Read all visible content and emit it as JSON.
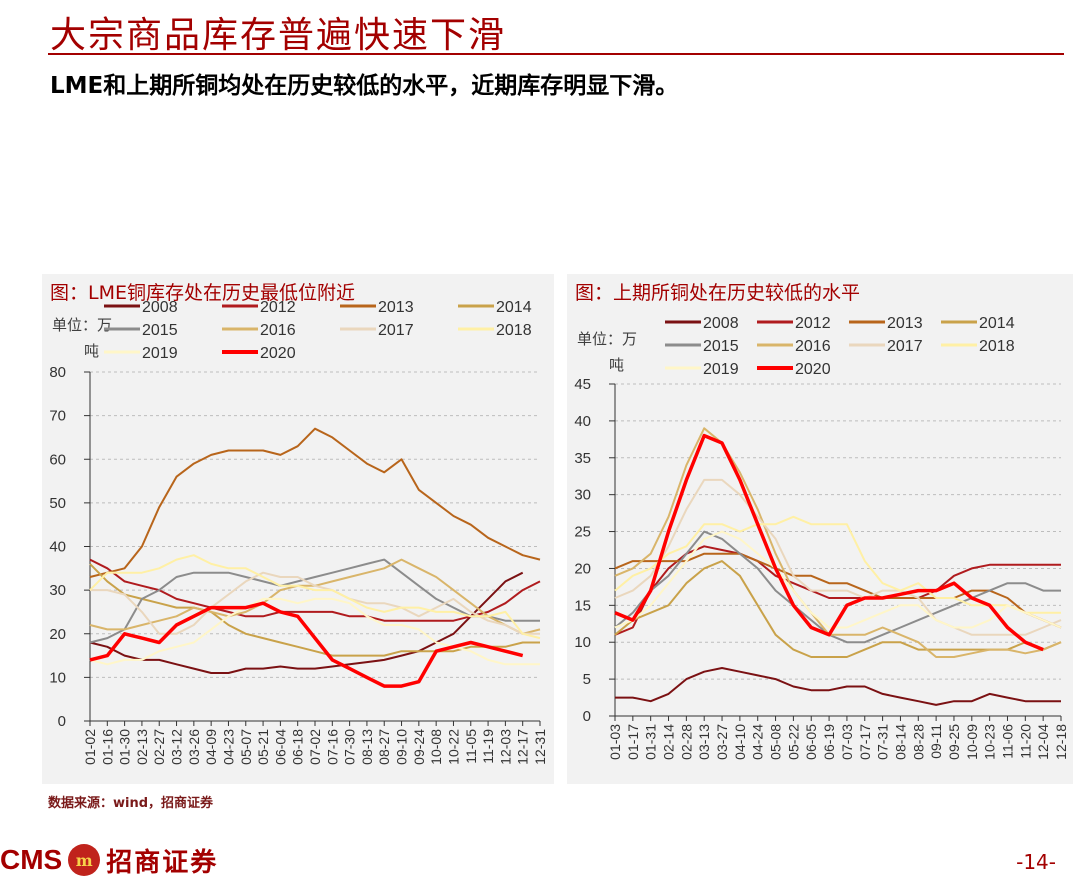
{
  "header": {
    "title": "大宗商品库存普遍快速下滑",
    "subtitle": "LME和上期所铜均处在历史较低的水平，近期库存明显下滑。"
  },
  "footer": {
    "source": "数据来源：wind，招商证券",
    "logo_latin": "CMS",
    "logo_badge": "m",
    "logo_cn": "招商证券",
    "page_number": "-14-"
  },
  "colors": {
    "2008": "#7b1113",
    "2012": "#b01b1e",
    "2013": "#b8651b",
    "2014": "#c9a24a",
    "2015": "#8c8c8c",
    "2016": "#d9b56a",
    "2017": "#ead7bd",
    "2018": "#fff0a5",
    "2019": "#fff6c8",
    "2020": "#ff0000"
  },
  "chart_data": [
    {
      "type": "line",
      "title": "图：LME铜库存处在历史最低位附近",
      "ylabel_1": "单位：万",
      "ylabel_2": "吨",
      "ylim": [
        0,
        80
      ],
      "yticks": [
        0,
        10,
        20,
        30,
        40,
        50,
        60,
        70,
        80
      ],
      "categories": [
        "01-02",
        "01-16",
        "01-30",
        "02-13",
        "02-27",
        "03-12",
        "03-26",
        "04-09",
        "04-23",
        "05-07",
        "05-21",
        "06-04",
        "06-18",
        "07-02",
        "07-16",
        "07-30",
        "08-13",
        "08-27",
        "09-10",
        "09-24",
        "10-08",
        "10-22",
        "11-05",
        "11-19",
        "12-03",
        "12-17",
        "12-31"
      ],
      "legend": [
        "2008",
        "2012",
        "2013",
        "2014",
        "2015",
        "2016",
        "2017",
        "2018",
        "2019",
        "2020"
      ],
      "series": [
        {
          "name": "2008",
          "values": [
            18,
            17,
            15,
            14,
            14,
            13,
            12,
            11,
            11,
            12,
            12,
            12.5,
            12,
            12,
            12.5,
            13,
            13.5,
            14,
            15,
            16,
            18,
            20,
            24,
            28,
            32,
            34,
            null
          ]
        },
        {
          "name": "2012",
          "values": [
            37,
            35,
            32,
            31,
            30,
            28,
            27,
            26,
            25,
            24,
            24,
            25,
            25,
            25,
            25,
            24,
            24,
            23,
            23,
            23,
            23,
            23,
            24,
            25,
            27,
            30,
            32
          ]
        },
        {
          "name": "2013",
          "values": [
            33,
            34,
            35,
            40,
            49,
            56,
            59,
            61,
            62,
            62,
            62,
            61,
            63,
            67,
            65,
            62,
            59,
            57,
            60,
            53,
            50,
            47,
            45,
            42,
            40,
            38,
            37
          ]
        },
        {
          "name": "2014",
          "values": [
            36,
            32,
            29,
            28,
            27,
            26,
            26,
            25,
            22,
            20,
            19,
            18,
            17,
            16,
            15,
            15,
            15,
            15,
            16,
            16,
            16,
            16,
            17,
            17,
            17,
            18,
            18
          ]
        },
        {
          "name": "2015",
          "values": [
            18,
            19,
            21,
            28,
            30,
            33,
            34,
            34,
            34,
            33,
            32,
            31,
            32,
            33,
            34,
            35,
            36,
            37,
            34,
            31,
            28,
            26,
            24,
            24,
            23,
            23,
            23
          ]
        },
        {
          "name": "2016",
          "values": [
            22,
            21,
            21,
            22,
            23,
            24,
            26,
            25,
            24,
            25,
            27,
            30,
            31,
            31,
            32,
            33,
            34,
            35,
            37,
            35,
            33,
            30,
            27,
            24,
            22,
            20,
            21
          ]
        },
        {
          "name": "2017",
          "values": [
            30,
            30,
            29,
            25,
            20,
            20,
            22,
            26,
            29,
            32,
            34,
            33,
            33,
            31,
            30,
            28,
            27,
            27,
            26,
            24,
            26,
            28,
            25,
            23,
            22,
            20,
            20
          ]
        },
        {
          "name": "2018",
          "values": [
            30,
            34,
            34,
            34,
            35,
            37,
            38,
            36,
            35,
            35,
            33,
            31,
            31,
            30,
            30,
            28,
            26,
            25,
            26,
            26,
            25,
            25,
            24,
            24,
            25,
            20,
            19
          ]
        },
        {
          "name": "2019",
          "values": [
            14,
            13,
            14,
            14,
            16,
            17,
            18,
            21,
            24,
            26,
            28,
            28,
            27,
            28,
            28,
            27,
            24,
            22,
            22,
            21,
            18,
            17,
            16,
            14,
            13,
            13,
            13
          ]
        },
        {
          "name": "2020",
          "values": [
            14,
            15,
            20,
            19,
            18,
            22,
            24,
            26,
            26,
            26,
            27,
            25,
            24,
            19,
            14,
            12,
            10,
            8,
            8,
            9,
            16,
            17,
            18,
            17,
            16,
            15,
            null
          ]
        }
      ]
    },
    {
      "type": "line",
      "title": "图：上期所铜处在历史较低的水平",
      "ylabel_1": "单位：万",
      "ylabel_2": "吨",
      "ylim": [
        0,
        45
      ],
      "yticks": [
        0,
        5,
        10,
        15,
        20,
        25,
        30,
        35,
        40,
        45
      ],
      "categories": [
        "01-03",
        "01-17",
        "01-31",
        "02-14",
        "02-28",
        "03-13",
        "03-27",
        "04-10",
        "04-24",
        "05-08",
        "05-22",
        "06-05",
        "06-19",
        "07-03",
        "07-17",
        "07-31",
        "08-14",
        "08-28",
        "09-11",
        "09-25",
        "10-09",
        "10-23",
        "11-06",
        "11-20",
        "12-04",
        "12-18"
      ],
      "legend": [
        "2008",
        "2012",
        "2013",
        "2014",
        "2015",
        "2016",
        "2017",
        "2018",
        "2019",
        "2020"
      ],
      "series": [
        {
          "name": "2008",
          "values": [
            2.5,
            2.5,
            2,
            3,
            5,
            6,
            6.5,
            6,
            5.5,
            5,
            4,
            3.5,
            3.5,
            4,
            4,
            3,
            2.5,
            2,
            1.5,
            2,
            2,
            3,
            2.5,
            2,
            2,
            2
          ]
        },
        {
          "name": "2012",
          "values": [
            11,
            12,
            17,
            20,
            22,
            23,
            22.5,
            22,
            21,
            19,
            18,
            17,
            16,
            16,
            16,
            16,
            16,
            16,
            17,
            19,
            20,
            20.5,
            20.5,
            20.5,
            20.5,
            20.5
          ]
        },
        {
          "name": "2013",
          "values": [
            20,
            21,
            21,
            21,
            21,
            22,
            22,
            22,
            21,
            20,
            19,
            19,
            18,
            18,
            17,
            16,
            16,
            16,
            16,
            16,
            17,
            17,
            16,
            14,
            13,
            12
          ]
        },
        {
          "name": "2014",
          "values": [
            11,
            13,
            14,
            15,
            18,
            20,
            21,
            19,
            15,
            11,
            9,
            8,
            8,
            8,
            9,
            10,
            10,
            9,
            9,
            9,
            9,
            9,
            9,
            10,
            9,
            10
          ]
        },
        {
          "name": "2015",
          "values": [
            12,
            14,
            17,
            19,
            22,
            25,
            24,
            22,
            20,
            17,
            15,
            13,
            11,
            10,
            10,
            11,
            12,
            13,
            14,
            15,
            16,
            17,
            18,
            18,
            17,
            17
          ]
        },
        {
          "name": "2016",
          "values": [
            19,
            20,
            22,
            27,
            34,
            39,
            37,
            33,
            28,
            22,
            17,
            14,
            11,
            11,
            11,
            12,
            11,
            10,
            8,
            8,
            8.5,
            9,
            9,
            8.5,
            9,
            10
          ]
        },
        {
          "name": "2017",
          "values": [
            16,
            17,
            19,
            23,
            28,
            32,
            32,
            30,
            27,
            24,
            19,
            17,
            17,
            17,
            16,
            17,
            17,
            16,
            13,
            12,
            11,
            11,
            11,
            11,
            12,
            13
          ]
        },
        {
          "name": "2018",
          "values": [
            17,
            19,
            20,
            22,
            23,
            26,
            26,
            25,
            26,
            26,
            27,
            26,
            26,
            26,
            21,
            18,
            17,
            18,
            16,
            16,
            15,
            15,
            15,
            14,
            14,
            14
          ]
        },
        {
          "name": "2019",
          "values": [
            12,
            13,
            15,
            18,
            21,
            24,
            25,
            24,
            22,
            20,
            17,
            14,
            12,
            12,
            13,
            14,
            15,
            15,
            13,
            12,
            12,
            13,
            15,
            14,
            13,
            12
          ]
        },
        {
          "name": "2020",
          "values": [
            14,
            13,
            17,
            25,
            32,
            38,
            37,
            32,
            26,
            20,
            15,
            12,
            11,
            15,
            16,
            16,
            16.5,
            17,
            17,
            18,
            16,
            15,
            12,
            10,
            9,
            null
          ]
        }
      ]
    }
  ]
}
